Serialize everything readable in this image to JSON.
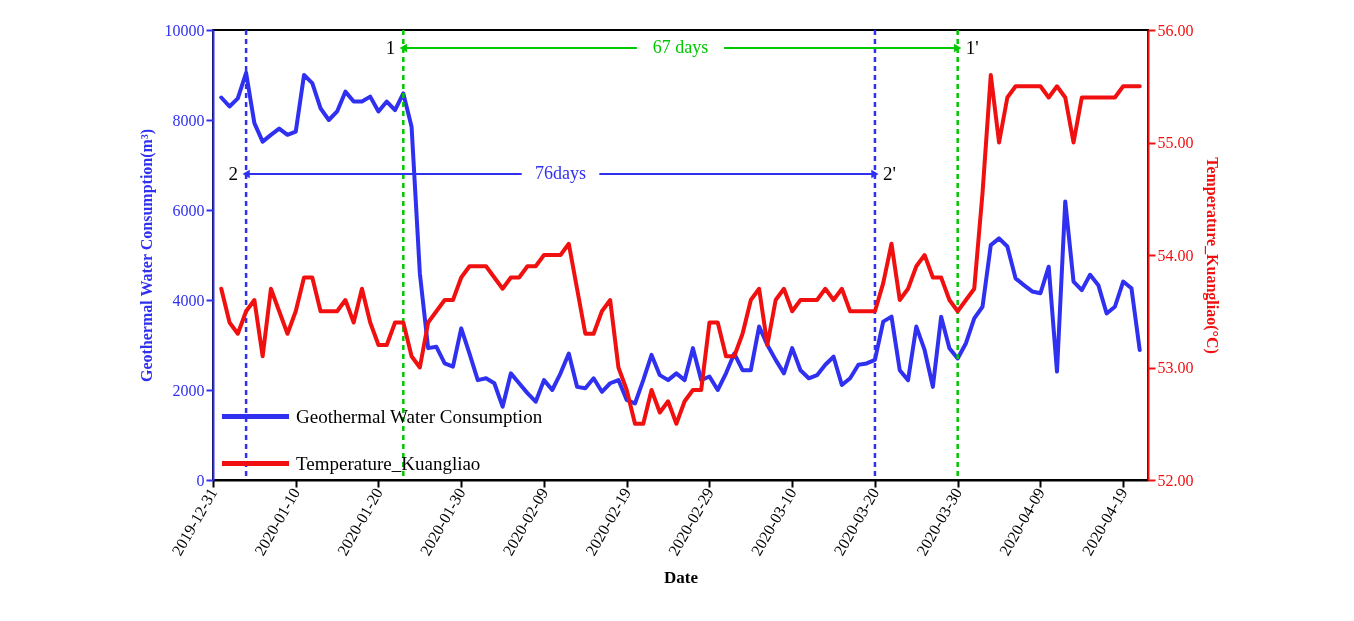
{
  "chart_data": {
    "type": "line",
    "xlabel": "Date",
    "ylabel": "Geothermal Water Consumption(m³)",
    "y2label": "Temperature_Kuangliao(°C)",
    "x": [
      "2020-01-01",
      "2020-01-02",
      "2020-01-03",
      "2020-01-04",
      "2020-01-05",
      "2020-01-06",
      "2020-01-07",
      "2020-01-08",
      "2020-01-09",
      "2020-01-10",
      "2020-01-11",
      "2020-01-12",
      "2020-01-13",
      "2020-01-14",
      "2020-01-15",
      "2020-01-16",
      "2020-01-17",
      "2020-01-18",
      "2020-01-19",
      "2020-01-20",
      "2020-01-21",
      "2020-01-22",
      "2020-01-23",
      "2020-01-24",
      "2020-01-25",
      "2020-01-26",
      "2020-01-27",
      "2020-01-28",
      "2020-01-29",
      "2020-01-30",
      "2020-01-31",
      "2020-02-01",
      "2020-02-02",
      "2020-02-03",
      "2020-02-04",
      "2020-02-05",
      "2020-02-06",
      "2020-02-07",
      "2020-02-08",
      "2020-02-09",
      "2020-02-10",
      "2020-02-11",
      "2020-02-12",
      "2020-02-13",
      "2020-02-14",
      "2020-02-15",
      "2020-02-16",
      "2020-02-17",
      "2020-02-18",
      "2020-02-19",
      "2020-02-20",
      "2020-02-21",
      "2020-02-22",
      "2020-02-23",
      "2020-02-24",
      "2020-02-25",
      "2020-02-26",
      "2020-02-27",
      "2020-02-28",
      "2020-02-29",
      "2020-03-01",
      "2020-03-02",
      "2020-03-03",
      "2020-03-04",
      "2020-03-05",
      "2020-03-06",
      "2020-03-07",
      "2020-03-08",
      "2020-03-09",
      "2020-03-10",
      "2020-03-11",
      "2020-03-12",
      "2020-03-13",
      "2020-03-14",
      "2020-03-15",
      "2020-03-16",
      "2020-03-17",
      "2020-03-18",
      "2020-03-19",
      "2020-03-20",
      "2020-03-21",
      "2020-03-22",
      "2020-03-23",
      "2020-03-24",
      "2020-03-25",
      "2020-03-26",
      "2020-03-27",
      "2020-03-28",
      "2020-03-29",
      "2020-03-30",
      "2020-03-31",
      "2020-04-01",
      "2020-04-02",
      "2020-04-03",
      "2020-04-04",
      "2020-04-05",
      "2020-04-06",
      "2020-04-07",
      "2020-04-08",
      "2020-04-09",
      "2020-04-10",
      "2020-04-11",
      "2020-04-12",
      "2020-04-13",
      "2020-04-14",
      "2020-04-15",
      "2020-04-16",
      "2020-04-17",
      "2020-04-18",
      "2020-04-19",
      "2020-04-20",
      "2020-04-21"
    ],
    "series": [
      {
        "name": "Geothermal Water Consumption",
        "color": "#3030f0",
        "values": [
          8500,
          8300,
          8480,
          9050,
          7930,
          7520,
          7670,
          7810,
          7670,
          7740,
          9000,
          8820,
          8260,
          8000,
          8190,
          8630,
          8410,
          8410,
          8520,
          8190,
          8410,
          8220,
          8590,
          7850,
          4590,
          2930,
          2960,
          2590,
          2520,
          3370,
          2810,
          2220,
          2260,
          2150,
          1630,
          2370,
          2150,
          1930,
          1740,
          2220,
          2000,
          2370,
          2810,
          2070,
          2040,
          2260,
          1960,
          2150,
          2220,
          1780,
          1700,
          2220,
          2780,
          2330,
          2220,
          2370,
          2220,
          2930,
          2220,
          2300,
          2000,
          2370,
          2810,
          2440,
          2440,
          3410,
          3000,
          2670,
          2370,
          2930,
          2440,
          2260,
          2330,
          2560,
          2740,
          2110,
          2260,
          2560,
          2590,
          2670,
          3520,
          3630,
          2440,
          2220,
          3410,
          2890,
          2070,
          3630,
          2930,
          2700,
          3040,
          3590,
          3850,
          5220,
          5370,
          5190,
          4480,
          4330,
          4190,
          4150,
          4740,
          2410,
          6190,
          4410,
          4220,
          4560,
          4330,
          3700,
          3850,
          4410,
          4260,
          2890
        ]
      },
      {
        "name": "Temperature_Kuangliao",
        "color": "#f01010",
        "axis": "y2",
        "values": [
          53.7,
          53.4,
          53.3,
          53.5,
          53.6,
          53.1,
          53.7,
          53.5,
          53.3,
          53.5,
          53.8,
          53.8,
          53.5,
          53.5,
          53.5,
          53.6,
          53.4,
          53.7,
          53.4,
          53.2,
          53.2,
          53.4,
          53.4,
          53.1,
          53.0,
          53.4,
          53.5,
          53.6,
          53.6,
          53.8,
          53.9,
          53.9,
          53.9,
          53.8,
          53.7,
          53.8,
          53.8,
          53.9,
          53.9,
          54.0,
          54.0,
          54.0,
          54.1,
          53.7,
          53.3,
          53.3,
          53.5,
          53.6,
          53.0,
          52.8,
          52.5,
          52.5,
          52.8,
          52.6,
          52.7,
          52.5,
          52.7,
          52.8,
          52.8,
          53.4,
          53.4,
          53.1,
          53.1,
          53.3,
          53.6,
          53.7,
          53.2,
          53.6,
          53.7,
          53.5,
          53.6,
          53.6,
          53.6,
          53.7,
          53.6,
          53.7,
          53.5,
          53.5,
          53.5,
          53.5,
          53.75,
          54.1,
          53.6,
          53.7,
          53.9,
          54.0,
          53.8,
          53.8,
          53.6,
          53.5,
          53.6,
          53.7,
          54.55,
          55.6,
          55.0,
          55.4,
          55.5,
          55.5,
          55.5,
          55.5,
          55.4,
          55.5,
          55.4,
          55.0,
          55.4,
          55.4,
          55.4,
          55.4,
          55.4,
          55.5,
          55.5,
          55.5
        ]
      }
    ],
    "xlim": [
      "2019-12-31",
      "2020-04-22"
    ],
    "xticks": [
      "2019-12-31",
      "2020-01-10",
      "2020-01-20",
      "2020-01-30",
      "2020-02-09",
      "2020-02-19",
      "2020-02-29",
      "2020-03-10",
      "2020-03-20",
      "2020-03-30",
      "2020-04-09",
      "2020-04-19"
    ],
    "ylim": [
      0,
      10000
    ],
    "yticks": [
      0,
      2000,
      4000,
      6000,
      8000,
      10000
    ],
    "y2lim": [
      52,
      56
    ],
    "y2ticks": [
      {
        "value": 52,
        "label": "52.00"
      },
      {
        "value": 53,
        "label": "53.00"
      },
      {
        "value": 54,
        "label": "54.00"
      },
      {
        "value": 55,
        "label": "55.00"
      },
      {
        "value": 56,
        "label": "56.00"
      }
    ],
    "ref_lines": [
      {
        "axis": "x",
        "value": "2020-01-23",
        "label": "1",
        "color": "#00c800",
        "line_style": "dashed"
      },
      {
        "axis": "x",
        "value": "2020-03-30",
        "label": "1'",
        "color": "#00c800",
        "line_style": "dashed"
      },
      {
        "axis": "x",
        "value": "2020-01-04",
        "label": "2",
        "color": "#3030f0",
        "line_style": "dashed"
      },
      {
        "axis": "x",
        "value": "2020-03-20",
        "label": "2'",
        "color": "#3030f0",
        "line_style": "dashed"
      }
    ],
    "annotations": [
      {
        "text": "67 days",
        "x": "2020-03-30",
        "y": 9600
      },
      {
        "text": "76days",
        "x": "2020-03-20",
        "y": 6800
      }
    ],
    "legend": "bottom left"
  }
}
